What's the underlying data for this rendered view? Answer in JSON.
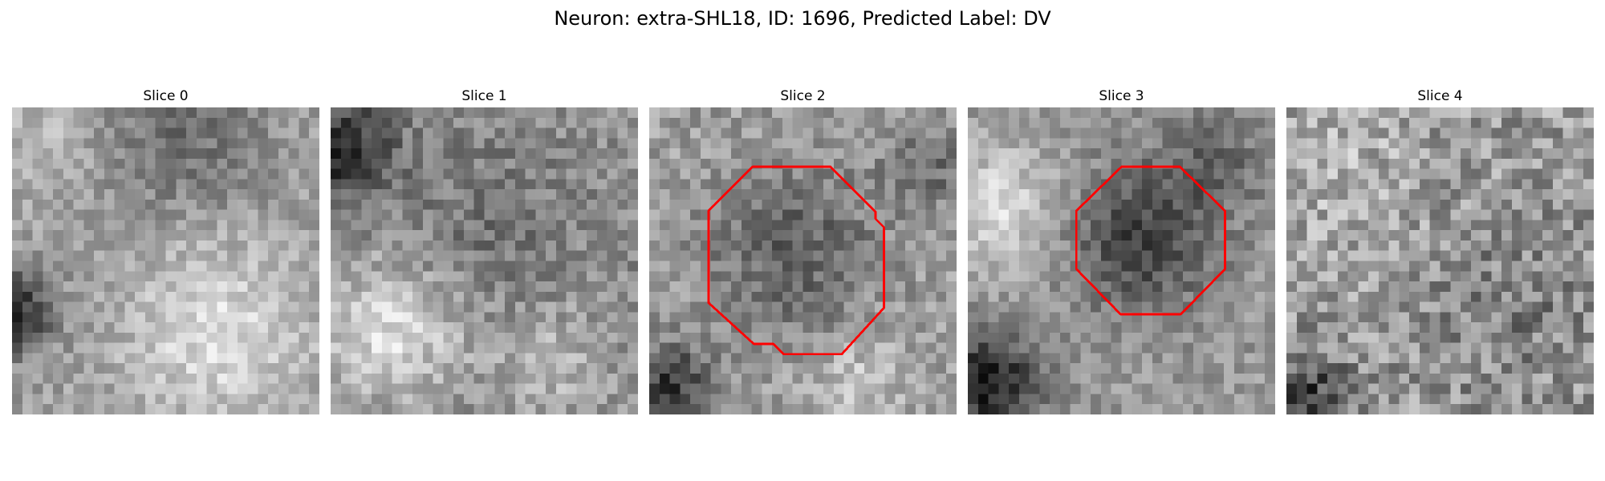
{
  "figure": {
    "title": "Neuron: extra-SHL18, ID: 1696, Predicted Label: DV"
  },
  "panels": [
    {
      "title": "Slice 0",
      "has_contour": false
    },
    {
      "title": "Slice 1",
      "has_contour": false
    },
    {
      "title": "Slice 2",
      "has_contour": true
    },
    {
      "title": "Slice 3",
      "has_contour": true
    },
    {
      "title": "Slice 4",
      "has_contour": false
    }
  ],
  "colors": {
    "contour": "#ff0000",
    "colormap": "gray"
  }
}
